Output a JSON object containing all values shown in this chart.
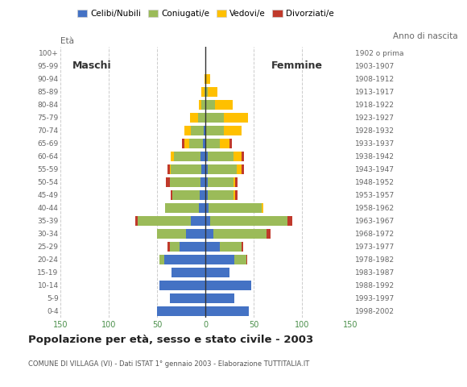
{
  "title": "Popolazione per età, sesso e stato civile - 2003",
  "subtitle": "COMUNE DI VILLAGA (VI) - Dati ISTAT 1° gennaio 2003 - Elaborazione TUTTITALIA.IT",
  "ylabel_left": "Età",
  "ylabel_right": "Anno di nascita",
  "xlabel_left": "Maschi",
  "xlabel_right": "Femmine",
  "age_groups": [
    "0-4",
    "5-9",
    "10-14",
    "15-19",
    "20-24",
    "25-29",
    "30-34",
    "35-39",
    "40-44",
    "45-49",
    "50-54",
    "55-59",
    "60-64",
    "65-69",
    "70-74",
    "75-79",
    "80-84",
    "85-89",
    "90-94",
    "95-99",
    "100+"
  ],
  "birth_years": [
    "1998-2002",
    "1993-1997",
    "1988-1992",
    "1983-1987",
    "1978-1982",
    "1973-1977",
    "1968-1972",
    "1963-1967",
    "1958-1962",
    "1953-1957",
    "1948-1952",
    "1943-1947",
    "1938-1942",
    "1933-1937",
    "1928-1932",
    "1923-1927",
    "1918-1922",
    "1913-1917",
    "1908-1912",
    "1903-1907",
    "1902 o prima"
  ],
  "colors": {
    "celibe": "#4472c4",
    "coniugato": "#9bbb59",
    "vedovo": "#ffc000",
    "divorziato": "#c0392b"
  },
  "legend_labels": [
    "Celibi/Nubili",
    "Coniugati/e",
    "Vedovi/e",
    "Divorziati/e"
  ],
  "xlim": 150,
  "males": {
    "celibe": [
      50,
      37,
      48,
      35,
      43,
      27,
      20,
      15,
      7,
      6,
      5,
      4,
      5,
      3,
      2,
      0,
      0,
      0,
      0,
      0,
      0
    ],
    "coniugato": [
      0,
      0,
      0,
      0,
      5,
      10,
      30,
      55,
      35,
      28,
      32,
      32,
      28,
      14,
      13,
      8,
      4,
      1,
      0,
      0,
      0
    ],
    "vedovo": [
      0,
      0,
      0,
      0,
      0,
      0,
      0,
      0,
      0,
      0,
      0,
      1,
      3,
      5,
      7,
      8,
      3,
      3,
      1,
      0,
      0
    ],
    "divorziato": [
      0,
      0,
      0,
      0,
      0,
      2,
      0,
      3,
      0,
      2,
      4,
      2,
      0,
      2,
      0,
      0,
      0,
      0,
      0,
      0,
      0
    ]
  },
  "females": {
    "nubile": [
      45,
      30,
      47,
      25,
      30,
      15,
      8,
      5,
      3,
      2,
      2,
      2,
      2,
      1,
      1,
      1,
      0,
      0,
      0,
      0,
      0
    ],
    "coniugata": [
      0,
      0,
      0,
      0,
      12,
      22,
      55,
      80,
      55,
      27,
      27,
      30,
      27,
      14,
      18,
      18,
      10,
      2,
      0,
      0,
      0
    ],
    "vedova": [
      0,
      0,
      0,
      0,
      0,
      0,
      0,
      0,
      2,
      2,
      2,
      5,
      8,
      10,
      18,
      25,
      18,
      10,
      5,
      1,
      0
    ],
    "divorziata": [
      0,
      0,
      0,
      0,
      1,
      2,
      4,
      5,
      0,
      2,
      2,
      3,
      3,
      2,
      0,
      0,
      0,
      0,
      0,
      0,
      0
    ]
  },
  "background_color": "#ffffff",
  "grid_color": "#cccccc",
  "bar_height": 0.75
}
